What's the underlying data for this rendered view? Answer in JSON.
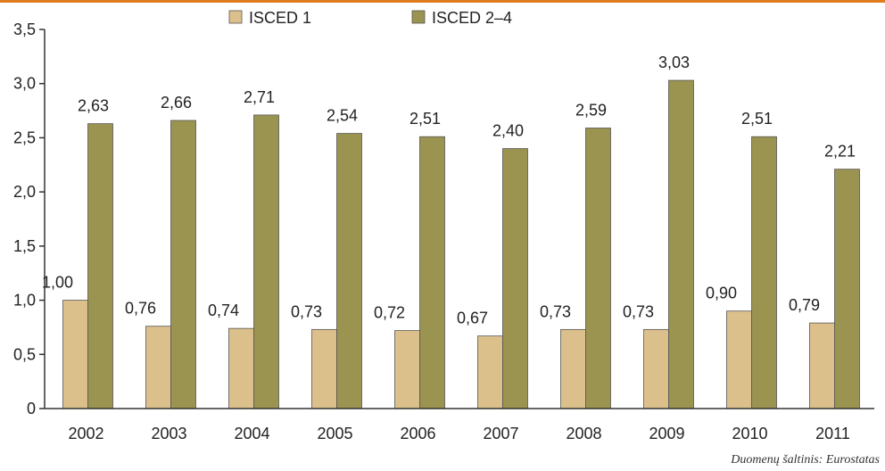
{
  "chart_data": {
    "type": "bar",
    "categories": [
      "2002",
      "2003",
      "2004",
      "2005",
      "2006",
      "2007",
      "2008",
      "2009",
      "2010",
      "2011"
    ],
    "series": [
      {
        "name": "ISCED 1",
        "color": "#dcc08c",
        "values": [
          1.0,
          0.76,
          0.74,
          0.73,
          0.72,
          0.67,
          0.73,
          0.73,
          0.9,
          0.79
        ],
        "labels": [
          "1,00",
          "0,76",
          "0,74",
          "0,73",
          "0,72",
          "0,67",
          "0,73",
          "0,73",
          "0,90",
          "0,79"
        ]
      },
      {
        "name": "ISCED 2–4",
        "color": "#9b9350",
        "values": [
          2.63,
          2.66,
          2.71,
          2.54,
          2.51,
          2.4,
          2.59,
          3.03,
          2.51,
          2.21
        ],
        "labels": [
          "2,63",
          "2,66",
          "2,71",
          "2,54",
          "2,51",
          "2,40",
          "2,59",
          "3,03",
          "2,51",
          "2,21"
        ]
      }
    ],
    "ylim": [
      0,
      3.5
    ],
    "yticks": [
      0,
      0.5,
      1.0,
      1.5,
      2.0,
      2.5,
      3.0,
      3.5
    ],
    "ytick_labels": [
      "0",
      "0,5",
      "1,0",
      "1,5",
      "2,0",
      "2,5",
      "3,0",
      "3,5"
    ],
    "grid": false,
    "legend_position": "top-center",
    "source": "Duomenų šaltinis: Eurostatas",
    "header_color": "#e07b1e"
  }
}
